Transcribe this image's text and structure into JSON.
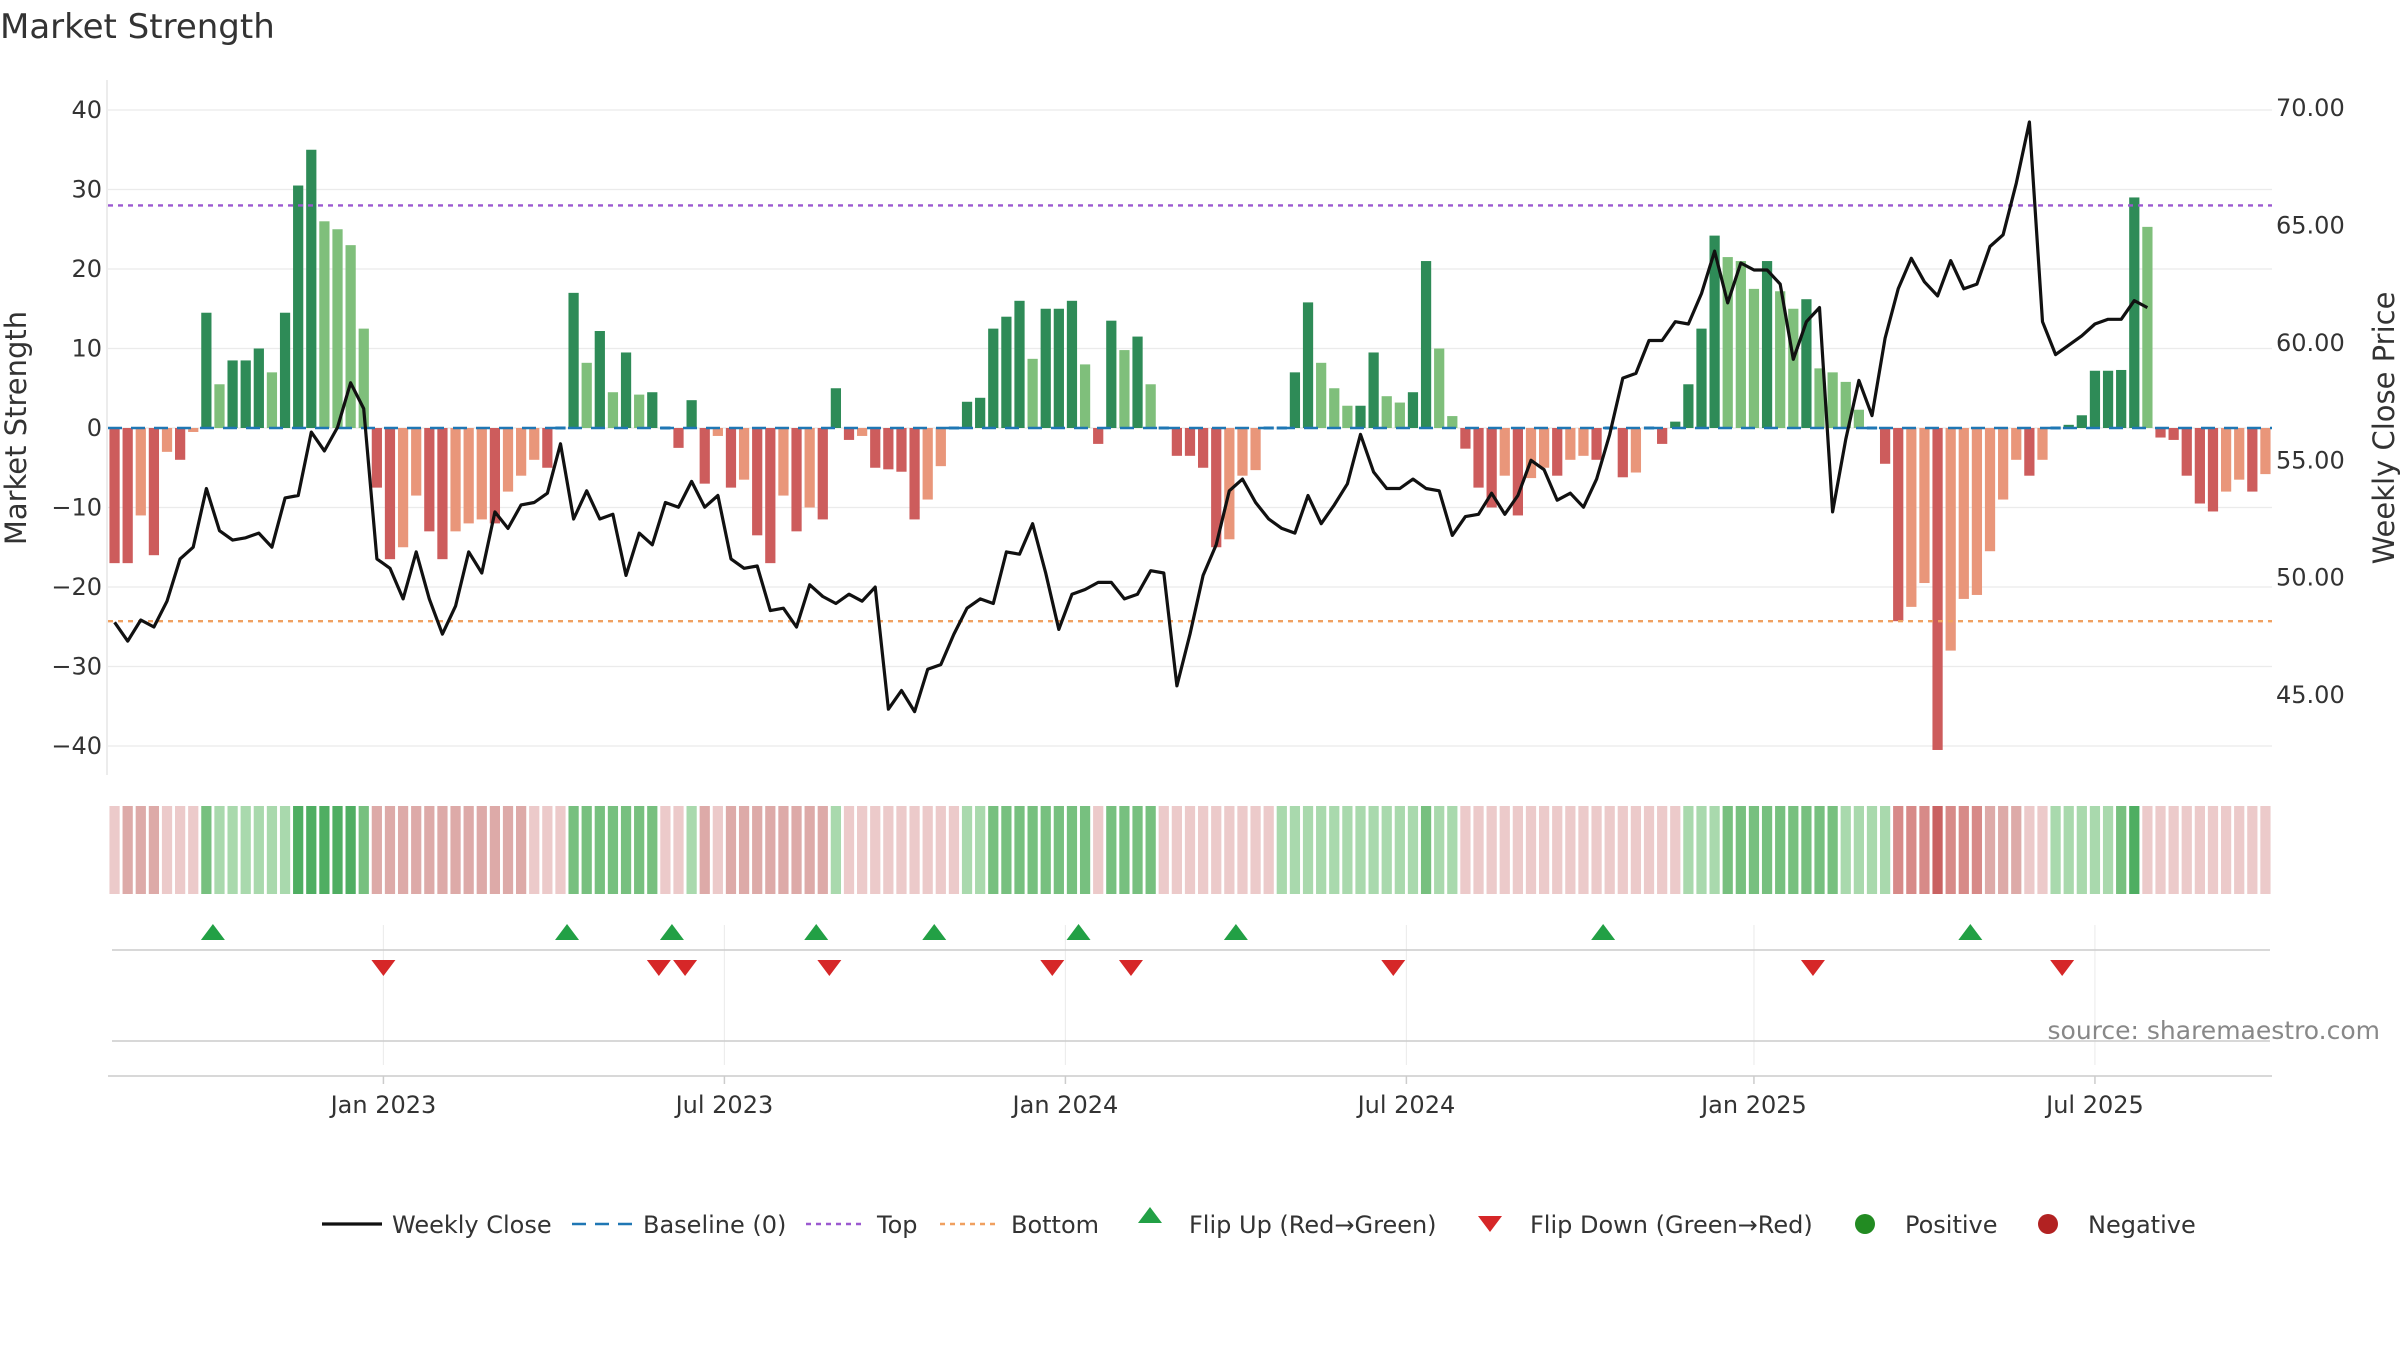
{
  "chart_data": {
    "type": "bar",
    "title": "Market Strength",
    "ylabel": "Market Strength",
    "y2label": "Weekly Close Price",
    "ylim": [
      -43,
      44
    ],
    "y2lim": [
      42.75,
      71.19
    ],
    "yticks": [
      40,
      30,
      20,
      10,
      0,
      -10,
      -20,
      -30,
      -40
    ],
    "ytick_labels": [
      "40",
      "30",
      "20",
      "10",
      "0",
      "−10",
      "−20",
      "−30",
      "−40"
    ],
    "y2ticks": [
      70,
      65,
      60,
      55,
      50,
      45
    ],
    "y2tick_labels": [
      "70.00",
      "65.00",
      "60.00",
      "55.00",
      "50.00",
      "45.00"
    ],
    "xticks": [
      {
        "label": "Jan 2023",
        "week": 20.5
      },
      {
        "label": "Jul 2023",
        "week": 46.5
      },
      {
        "label": "Jan 2024",
        "week": 72.5
      },
      {
        "label": "Jul 2024",
        "week": 98.5
      },
      {
        "label": "Jan 2025",
        "week": 125
      },
      {
        "label": "Jul 2025",
        "week": 151
      }
    ],
    "top_line": 28,
    "bottom_line": -24.3,
    "strength": [
      -17,
      -17,
      -11,
      -16,
      -3,
      -4,
      -0.5,
      14.5,
      5.5,
      8.5,
      8.5,
      10,
      7,
      14.5,
      30.5,
      35,
      26,
      25,
      23,
      12.5,
      -7.5,
      -16.5,
      -15,
      -8.5,
      -13,
      -16.5,
      -13,
      -12,
      -11.5,
      -12,
      -8,
      -6,
      -4,
      -5,
      0,
      17,
      8.2,
      12.2,
      4.5,
      9.5,
      4.2,
      4.5,
      0,
      -2.5,
      3.5,
      -7,
      -1,
      -7.5,
      -6.5,
      -13.5,
      -17,
      -8.5,
      -13,
      -10,
      -11.5,
      5,
      -1.5,
      -1,
      -5,
      -5.2,
      -5.5,
      -11.5,
      -9,
      -4.8,
      0,
      3.3,
      3.8,
      12.5,
      14,
      16,
      8.7,
      15,
      15,
      16,
      8,
      -2,
      13.5,
      9.8,
      11.5,
      5.5,
      0,
      -3.5,
      -3.5,
      -5,
      -15,
      -14,
      -6,
      -5.3,
      0,
      0,
      7,
      15.8,
      8.2,
      5,
      2.8,
      2.8,
      9.5,
      4,
      3.2,
      4.5,
      21,
      10,
      1.5,
      -2.6,
      -7.5,
      -10,
      -6,
      -11,
      -6.3,
      -5,
      -6,
      -4,
      -3.5,
      -4,
      0,
      -6.2,
      -5.6,
      0,
      -2,
      0.8,
      5.5,
      12.5,
      24.2,
      21.5,
      21,
      17.5,
      21,
      17.2,
      15,
      16.2,
      7.5,
      7,
      5.8,
      2.3,
      0,
      -4.5,
      -24.3,
      -22.5,
      -19.5,
      -40.5,
      -28,
      -21.5,
      -21,
      -15.5,
      -9,
      -4,
      -6,
      -4,
      0,
      0.4,
      1.6,
      7.2,
      7.2,
      7.3,
      29,
      25.3,
      -1.2,
      -1.5,
      -6,
      -9.5,
      -10.5,
      -8,
      -6.5,
      -8,
      -5.8
    ],
    "close": [
      48.1,
      47.3,
      48.2,
      47.9,
      49,
      50.8,
      51.3,
      53.8,
      52,
      51.6,
      51.7,
      51.9,
      51.3,
      53.4,
      53.5,
      56.2,
      55.4,
      56.4,
      58.3,
      57.2,
      50.8,
      50.4,
      49.1,
      51.1,
      49.1,
      47.6,
      48.8,
      51.1,
      50.2,
      52.8,
      52.1,
      53.1,
      53.2,
      53.6,
      55.7,
      52.5,
      53.7,
      52.5,
      52.7,
      50.1,
      51.9,
      51.4,
      53.2,
      53,
      54.1,
      53,
      53.5,
      50.8,
      50.4,
      50.5,
      48.6,
      48.7,
      47.9,
      49.7,
      49.2,
      48.9,
      49.3,
      49,
      49.6,
      44.4,
      45.2,
      44.3,
      46.1,
      46.3,
      47.6,
      48.7,
      49.1,
      48.9,
      51.1,
      51,
      52.3,
      50.2,
      47.8,
      49.3,
      49.5,
      49.8,
      49.8,
      49.1,
      49.3,
      50.3,
      50.2,
      45.4,
      47.6,
      50.1,
      51.4,
      53.7,
      54.2,
      53.2,
      52.5,
      52.1,
      51.9,
      53.5,
      52.3,
      53.1,
      54,
      56.1,
      54.5,
      53.8,
      53.8,
      54.2,
      53.8,
      53.7,
      51.8,
      52.6,
      52.7,
      53.6,
      52.7,
      53.5,
      55,
      54.6,
      53.3,
      53.6,
      53,
      54.2,
      56.1,
      58.5,
      58.7,
      60.1,
      60.1,
      60.9,
      60.8,
      62.1,
      63.9,
      61.7,
      63.4,
      63.1,
      63.1,
      62.5,
      59.3,
      60.9,
      61.5,
      52.8,
      55.9,
      58.4,
      56.9,
      60.2,
      62.3,
      63.6,
      62.6,
      62,
      63.5,
      62.3,
      62.5,
      64.1,
      64.6,
      66.8,
      69.4,
      60.9,
      59.5,
      59.9,
      60.3,
      60.8,
      61,
      61,
      61.8,
      61.5
    ],
    "strip_shade": [
      "lr",
      "mr",
      "mr",
      "mr",
      "lr",
      "lr",
      "lr",
      "mg",
      "lg",
      "lg",
      "lg",
      "lg",
      "lg",
      "lg",
      "dg",
      "dg",
      "dg",
      "dg",
      "dg",
      "mg",
      "mr",
      "mr",
      "mr",
      "mr",
      "mr",
      "mr",
      "mr",
      "mr",
      "mr",
      "mr",
      "mr",
      "mr",
      "lr",
      "lr",
      "lr",
      "mg",
      "mg",
      "mg",
      "mg",
      "mg",
      "mg",
      "mg",
      "lr",
      "lr",
      "lg",
      "mr",
      "lr",
      "mr",
      "mr",
      "mr",
      "mr",
      "mr",
      "mr",
      "mr",
      "mr",
      "lg",
      "lr",
      "lr",
      "lr",
      "lr",
      "lr",
      "lr",
      "lr",
      "lr",
      "lr",
      "lg",
      "lg",
      "mg",
      "mg",
      "mg",
      "mg",
      "mg",
      "mg",
      "mg",
      "mg",
      "lr",
      "mg",
      "mg",
      "mg",
      "mg",
      "lr",
      "lr",
      "lr",
      "lr",
      "lr",
      "lr",
      "lr",
      "lr",
      "lr",
      "lg",
      "lg",
      "lg",
      "lg",
      "lg",
      "lg",
      "lg",
      "lg",
      "lg",
      "lg",
      "lg",
      "mg",
      "lg",
      "lg",
      "lr",
      "lr",
      "lr",
      "lr",
      "lr",
      "lr",
      "lr",
      "lr",
      "lr",
      "lr",
      "lr",
      "lr",
      "lr",
      "lr",
      "lr",
      "lr",
      "lr",
      "lg",
      "lg",
      "lg",
      "mg",
      "mg",
      "mg",
      "mg",
      "mg",
      "mg",
      "mg",
      "mg",
      "mg",
      "lg",
      "lg",
      "lg",
      "lg",
      "dr",
      "dr",
      "dr",
      "xr",
      "dr",
      "dr",
      "dr",
      "mr",
      "mr",
      "mr",
      "lr",
      "lr",
      "lg",
      "lg",
      "lg",
      "lg",
      "lg",
      "mg",
      "dg",
      "lr",
      "lr",
      "lr",
      "lr",
      "lr",
      "lr",
      "lr",
      "lr",
      "lr",
      "lr"
    ],
    "flip_up_weeks": [
      7.5,
      34.5,
      42.5,
      53.5,
      62.5,
      73.5,
      85.5,
      113.5,
      141.5
    ],
    "flip_down_weeks": [
      20.5,
      41.5,
      43.5,
      54.5,
      71.5,
      77.5,
      97.5,
      129.5,
      148.5
    ],
    "legend": [
      "Weekly Close",
      "Baseline (0)",
      "Top",
      "Bottom",
      "Flip Up (Red→Green)",
      "Flip Down (Green→Red)",
      "Positive",
      "Negative"
    ],
    "source": "source: sharemaestro.com",
    "colors": {
      "dark_green": "#2e8b57",
      "light_green": "#7fbf7b",
      "dark_red": "#cd5c5c",
      "light_red": "#e9967a",
      "close_line": "#111111",
      "baseline": "#1f77b4",
      "top": "#9b59d0",
      "bottom": "#f0a060",
      "flip_up": "#22a045",
      "flip_down": "#d62728",
      "positive": "#228b22",
      "negative": "#b22222"
    }
  }
}
